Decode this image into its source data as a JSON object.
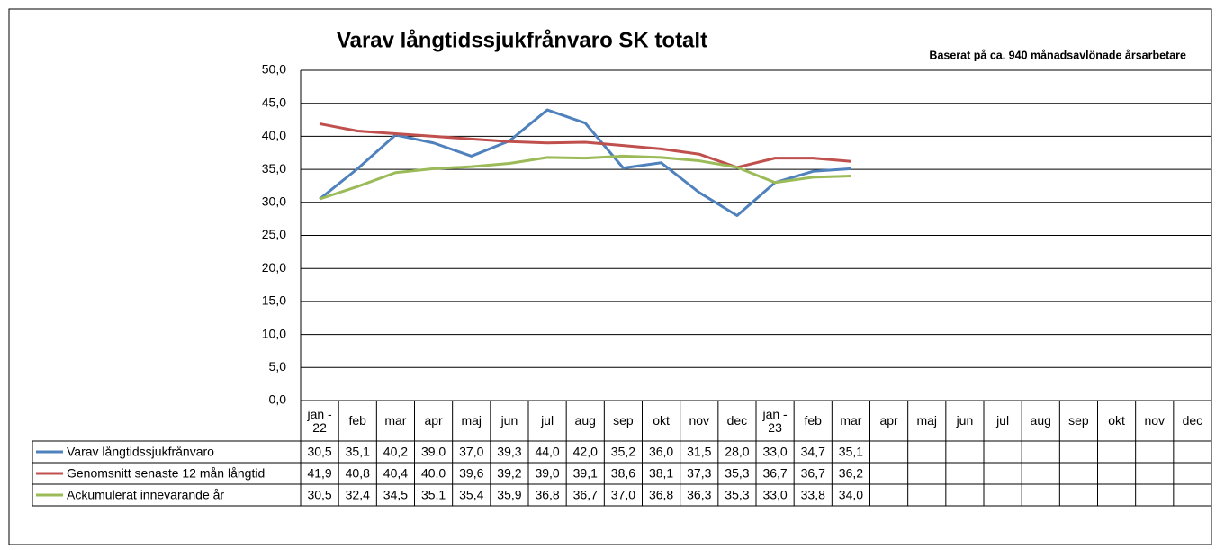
{
  "chart_data": {
    "type": "line",
    "title": "Varav långtidssjukfrånvaro SK totalt",
    "subtitle": "Baserat på ca. 940 månadsavlönade årsarbetare",
    "categories": [
      "jan - 22",
      "feb",
      "mar",
      "apr",
      "maj",
      "jun",
      "jul",
      "aug",
      "sep",
      "okt",
      "nov",
      "dec",
      "jan - 23",
      "feb",
      "mar",
      "apr",
      "maj",
      "jun",
      "jul",
      "aug",
      "sep",
      "okt",
      "nov",
      "dec"
    ],
    "series": [
      {
        "name": "Varav långtidssjukfrånvaro",
        "color": "#4f81bd",
        "values": [
          30.5,
          35.1,
          40.2,
          39.0,
          37.0,
          39.3,
          44.0,
          42.0,
          35.2,
          36.0,
          31.5,
          28.0,
          33.0,
          34.7,
          35.1,
          null,
          null,
          null,
          null,
          null,
          null,
          null,
          null,
          null
        ],
        "value_labels": [
          "30,5",
          "35,1",
          "40,2",
          "39,0",
          "37,0",
          "39,3",
          "44,0",
          "42,0",
          "35,2",
          "36,0",
          "31,5",
          "28,0",
          "33,0",
          "34,7",
          "35,1",
          null,
          null,
          null,
          null,
          null,
          null,
          null,
          null,
          null
        ]
      },
      {
        "name": "Genomsnitt senaste 12 mån långtid",
        "color": "#c0504d",
        "values": [
          41.9,
          40.8,
          40.4,
          40.0,
          39.6,
          39.2,
          39.0,
          39.1,
          38.6,
          38.1,
          37.3,
          35.3,
          36.7,
          36.7,
          36.2,
          null,
          null,
          null,
          null,
          null,
          null,
          null,
          null,
          null
        ],
        "value_labels": [
          "41,9",
          "40,8",
          "40,4",
          "40,0",
          "39,6",
          "39,2",
          "39,0",
          "39,1",
          "38,6",
          "38,1",
          "37,3",
          "35,3",
          "36,7",
          "36,7",
          "36,2",
          null,
          null,
          null,
          null,
          null,
          null,
          null,
          null,
          null
        ]
      },
      {
        "name": "Ackumulerat innevarande år",
        "color": "#9bbb59",
        "values": [
          30.5,
          32.4,
          34.5,
          35.1,
          35.4,
          35.9,
          36.8,
          36.7,
          37.0,
          36.8,
          36.3,
          35.3,
          33.0,
          33.8,
          34.0,
          null,
          null,
          null,
          null,
          null,
          null,
          null,
          null,
          null
        ],
        "value_labels": [
          "30,5",
          "32,4",
          "34,5",
          "35,1",
          "35,4",
          "35,9",
          "36,8",
          "36,7",
          "37,0",
          "36,8",
          "36,3",
          "35,3",
          "33,0",
          "33,8",
          "34,0",
          null,
          null,
          null,
          null,
          null,
          null,
          null,
          null,
          null
        ]
      }
    ],
    "ylim": [
      0,
      50
    ],
    "yticks": [
      {
        "value": 0,
        "label": "0,0"
      },
      {
        "value": 5,
        "label": "5,0"
      },
      {
        "value": 10,
        "label": "10,0"
      },
      {
        "value": 15,
        "label": "15,0"
      },
      {
        "value": 20,
        "label": "20,0"
      },
      {
        "value": 25,
        "label": "25,0"
      },
      {
        "value": 30,
        "label": "30,0"
      },
      {
        "value": 35,
        "label": "35,0"
      },
      {
        "value": 40,
        "label": "40,0"
      },
      {
        "value": 45,
        "label": "45,0"
      },
      {
        "value": 50,
        "label": "50,0"
      }
    ],
    "grid": true
  }
}
